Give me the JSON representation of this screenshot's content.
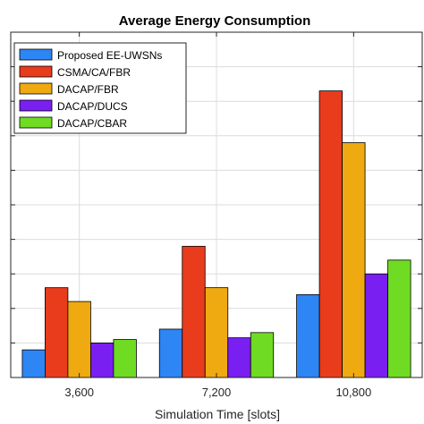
{
  "chart_data": {
    "type": "bar",
    "title": "Average Energy Consumption",
    "xlabel": "Simulation Time [slots]",
    "ylabel": "",
    "categories": [
      "3,600",
      "7,200",
      "10,800"
    ],
    "ylim": [
      0,
      10
    ],
    "yticks": [
      0,
      1,
      2,
      3,
      4,
      5,
      6,
      7,
      8,
      9,
      10
    ],
    "grid": true,
    "legend_position": "top-left",
    "series": [
      {
        "name": "Proposed EE-UWSNs",
        "color": "#2e86f5",
        "values": [
          0.8,
          1.4,
          2.4
        ]
      },
      {
        "name": "CSMA/CA/FBR",
        "color": "#e83c1c",
        "values": [
          2.6,
          3.8,
          8.3
        ]
      },
      {
        "name": "DACAP/FBR",
        "color": "#efaa12",
        "values": [
          2.2,
          2.6,
          6.8
        ]
      },
      {
        "name": "DACAP/DUCS",
        "color": "#7a1ff2",
        "values": [
          1.0,
          1.15,
          3.0
        ]
      },
      {
        "name": "DACAP/CBAR",
        "color": "#6fdb23",
        "values": [
          1.1,
          1.3,
          3.4
        ]
      }
    ]
  }
}
